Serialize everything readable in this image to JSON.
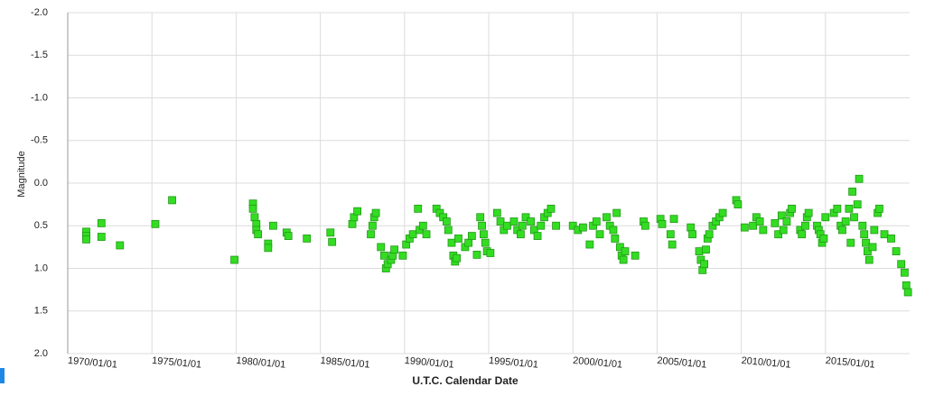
{
  "chart_data": {
    "type": "scatter",
    "x_label": "U.T.C. Calendar Date",
    "y_label": "Magnitude",
    "color": "#33dd22",
    "grid": true,
    "xlim": [
      1970,
      2020
    ],
    "ylim": [
      2.0,
      -2.0
    ],
    "xticks": [
      {
        "value": 1970,
        "label": "1970/01/01"
      },
      {
        "value": 1975,
        "label": "1975/01/01"
      },
      {
        "value": 1980,
        "label": "1980/01/01"
      },
      {
        "value": 1985,
        "label": "1985/01/01"
      },
      {
        "value": 1990,
        "label": "1990/01/01"
      },
      {
        "value": 1995,
        "label": "1995/01/01"
      },
      {
        "value": 2000,
        "label": "2000/01/01"
      },
      {
        "value": 2005,
        "label": "2005/01/01"
      },
      {
        "value": 2010,
        "label": "2010/01/01"
      },
      {
        "value": 2015,
        "label": "2015/01/01"
      }
    ],
    "yticks": [
      {
        "value": -2,
        "label": "-2.0"
      },
      -1.5,
      {
        "value": -1,
        "label": "-1.0"
      },
      -0.5,
      {
        "value": 0,
        "label": "0.0"
      },
      0.5,
      {
        "value": 1,
        "label": "1.0"
      },
      1.5,
      {
        "value": 2,
        "label": "2.0"
      }
    ],
    "x": [
      1971.1,
      1971.1,
      1971.1,
      1972.0,
      1972.0,
      1973.1,
      1975.2,
      1976.2,
      1979.9,
      1981.0,
      1981.0,
      1981.1,
      1981.2,
      1981.2,
      1981.3,
      1981.9,
      1981.9,
      1982.2,
      1983.0,
      1983.1,
      1984.2,
      1985.6,
      1985.7,
      1986.9,
      1987.0,
      1987.2,
      1988.0,
      1988.1,
      1988.2,
      1988.3,
      1988.6,
      1988.8,
      1988.9,
      1989.0,
      1989.2,
      1989.3,
      1989.4,
      1989.9,
      1990.1,
      1990.3,
      1990.5,
      1990.8,
      1990.9,
      1991.1,
      1991.3,
      1991.9,
      1992.1,
      1992.3,
      1992.5,
      1992.6,
      1992.8,
      1992.9,
      1993.0,
      1993.1,
      1993.2,
      1993.6,
      1993.8,
      1994.0,
      1994.3,
      1994.5,
      1994.6,
      1994.7,
      1994.8,
      1994.9,
      1995.1,
      1995.5,
      1995.7,
      1995.9,
      1996.1,
      1996.5,
      1996.7,
      1996.9,
      1997.0,
      1997.2,
      1997.5,
      1997.7,
      1997.9,
      1998.1,
      1998.3,
      1998.5,
      1998.7,
      1999.0,
      2000.0,
      2000.3,
      2000.6,
      2001.0,
      2001.2,
      2001.4,
      2001.6,
      2002.0,
      2002.2,
      2002.4,
      2002.6,
      2002.5,
      2002.8,
      2002.9,
      2003.0,
      2003.1,
      2003.7,
      2004.2,
      2004.3,
      2005.2,
      2005.3,
      2005.8,
      2005.9,
      2006.0,
      2007.0,
      2007.1,
      2007.5,
      2007.6,
      2007.7,
      2007.8,
      2007.9,
      2008.0,
      2008.1,
      2008.3,
      2008.5,
      2008.7,
      2008.9,
      2009.7,
      2009.8,
      2010.2,
      2010.7,
      2010.9,
      2011.1,
      2011.3,
      2012.0,
      2012.2,
      2012.4,
      2012.5,
      2012.7,
      2012.9,
      2013.0,
      2013.5,
      2013.6,
      2013.8,
      2013.9,
      2014.0,
      2014.5,
      2014.6,
      2014.7,
      2014.8,
      2014.9,
      2015.0,
      2015.5,
      2015.7,
      2015.9,
      2016.0,
      2016.2,
      2016.4,
      2016.6,
      2016.7,
      2016.5,
      2017.0,
      2016.9,
      2017.2,
      2017.3,
      2017.4,
      2017.5,
      2017.6,
      2017.8,
      2017.9,
      2018.1,
      2018.2,
      2018.5,
      2018.9,
      2019.2,
      2019.5,
      2019.7,
      2019.8,
      2019.9
    ],
    "values": [
      0.57,
      0.62,
      0.66,
      0.47,
      0.63,
      0.73,
      0.48,
      0.2,
      0.9,
      0.24,
      0.3,
      0.4,
      0.48,
      0.55,
      0.6,
      0.71,
      0.76,
      0.5,
      0.58,
      0.62,
      0.65,
      0.58,
      0.69,
      0.48,
      0.4,
      0.33,
      0.6,
      0.5,
      0.4,
      0.35,
      0.75,
      0.85,
      1.0,
      0.95,
      0.9,
      0.85,
      0.78,
      0.85,
      0.72,
      0.65,
      0.6,
      0.3,
      0.55,
      0.5,
      0.6,
      0.3,
      0.35,
      0.4,
      0.45,
      0.55,
      0.7,
      0.85,
      0.92,
      0.88,
      0.65,
      0.75,
      0.7,
      0.62,
      0.84,
      0.4,
      0.5,
      0.6,
      0.7,
      0.8,
      0.82,
      0.35,
      0.45,
      0.55,
      0.5,
      0.45,
      0.55,
      0.6,
      0.5,
      0.4,
      0.45,
      0.55,
      0.62,
      0.5,
      0.4,
      0.35,
      0.3,
      0.5,
      0.5,
      0.55,
      0.52,
      0.72,
      0.5,
      0.45,
      0.6,
      0.4,
      0.5,
      0.55,
      0.35,
      0.65,
      0.75,
      0.85,
      0.9,
      0.8,
      0.85,
      0.45,
      0.5,
      0.42,
      0.48,
      0.6,
      0.72,
      0.42,
      0.52,
      0.6,
      0.8,
      0.9,
      1.02,
      0.95,
      0.78,
      0.65,
      0.6,
      0.5,
      0.45,
      0.4,
      0.35,
      0.2,
      0.25,
      0.52,
      0.5,
      0.4,
      0.45,
      0.55,
      0.47,
      0.6,
      0.38,
      0.55,
      0.45,
      0.35,
      0.3,
      0.55,
      0.6,
      0.5,
      0.4,
      0.35,
      0.5,
      0.55,
      0.6,
      0.7,
      0.65,
      0.4,
      0.35,
      0.3,
      0.5,
      0.55,
      0.45,
      0.3,
      0.1,
      0.4,
      0.7,
      -0.05,
      0.25,
      0.5,
      0.6,
      0.7,
      0.8,
      0.9,
      0.75,
      0.55,
      0.35,
      0.3,
      0.6,
      0.65,
      0.8,
      0.95,
      1.05,
      1.2,
      1.28
    ]
  }
}
